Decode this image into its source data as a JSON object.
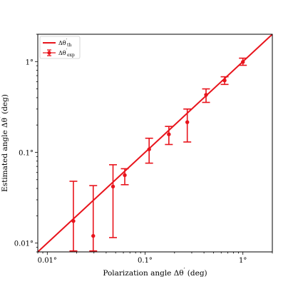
{
  "chart_data": {
    "type": "scatter",
    "x_scale": "log",
    "y_scale": "log",
    "xlabel_main": "Polarization angle Δθ",
    "xlabel_unit": " (deg)",
    "ylabel_main": "Estimated angle Δθ",
    "ylabel_unit": " (deg)",
    "xlim": [
      0.008,
      2.0
    ],
    "ylim": [
      0.008,
      2.0
    ],
    "x_ticks": [
      {
        "value": 0.01,
        "label": "0.01°"
      },
      {
        "value": 0.1,
        "label": "0.1°"
      },
      {
        "value": 1,
        "label": "1°"
      }
    ],
    "y_ticks": [
      {
        "value": 0.01,
        "label": "0.01°"
      },
      {
        "value": 0.1,
        "label": "0.1°"
      },
      {
        "value": 1,
        "label": "1°"
      }
    ],
    "legend": {
      "placement": "top-left",
      "entries": [
        {
          "base": "Δθ",
          "sub": "th",
          "style": "line"
        },
        {
          "base": "Δθ",
          "sub": "exp",
          "style": "errorbar"
        }
      ]
    },
    "series": [
      {
        "type": "line",
        "legend_key": 0,
        "x": [
          0.008,
          2.0
        ],
        "y": [
          0.008,
          2.0
        ]
      },
      {
        "type": "errorbar",
        "legend_key": 1,
        "points": [
          {
            "x": 0.0185,
            "y": 0.0175,
            "y_low": 0.0082,
            "y_high": 0.048
          },
          {
            "x": 0.0295,
            "y": 0.012,
            "y_low": 0.0082,
            "y_high": 0.043
          },
          {
            "x": 0.047,
            "y": 0.042,
            "y_low": 0.0115,
            "y_high": 0.073
          },
          {
            "x": 0.062,
            "y": 0.056,
            "y_low": 0.044,
            "y_high": 0.066
          },
          {
            "x": 0.11,
            "y": 0.108,
            "y_low": 0.076,
            "y_high": 0.143
          },
          {
            "x": 0.175,
            "y": 0.158,
            "y_low": 0.122,
            "y_high": 0.193
          },
          {
            "x": 0.27,
            "y": 0.215,
            "y_low": 0.13,
            "y_high": 0.3
          },
          {
            "x": 0.42,
            "y": 0.43,
            "y_low": 0.355,
            "y_high": 0.5
          },
          {
            "x": 0.65,
            "y": 0.62,
            "y_low": 0.56,
            "y_high": 0.68
          },
          {
            "x": 1.0,
            "y": 0.99,
            "y_low": 0.91,
            "y_high": 1.09
          }
        ]
      }
    ],
    "colors": {
      "series": "#e8141c",
      "axis": "#000000"
    }
  }
}
